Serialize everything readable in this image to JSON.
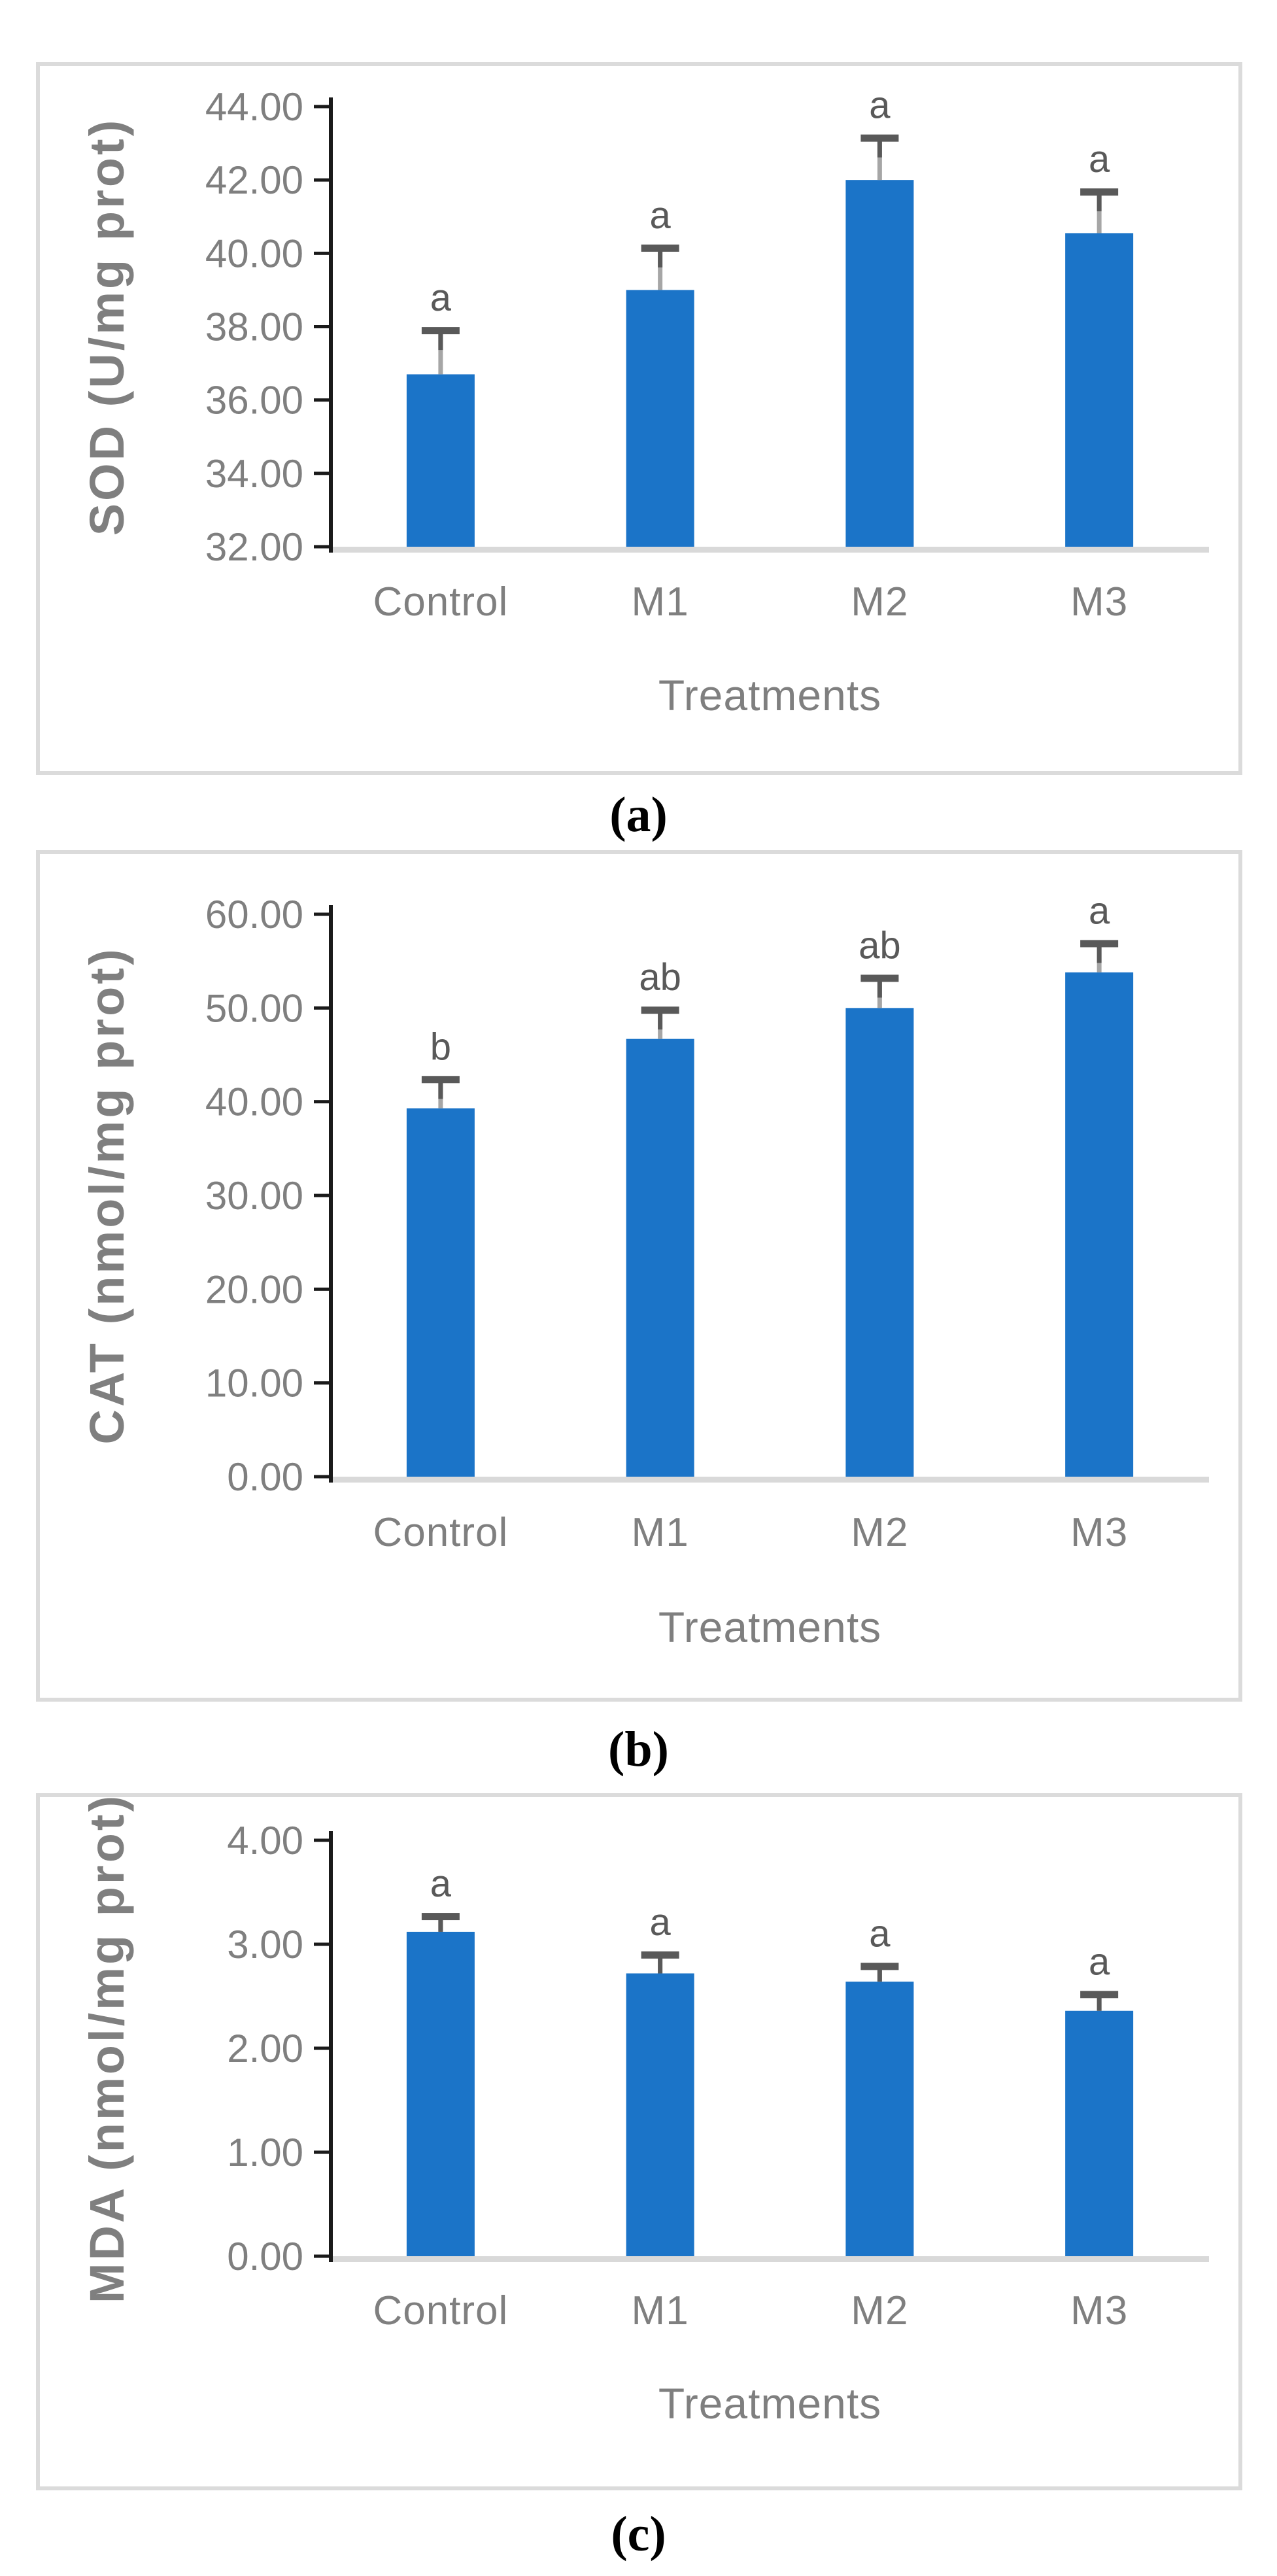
{
  "figure": {
    "caption_a": "(a)",
    "caption_b": "(b)",
    "caption_c": "(c)"
  },
  "colors": {
    "bar": "#1B74C8",
    "whisker": "#A6A6A6",
    "cap": "#595959",
    "sig_letter": "#595959",
    "tick_label": "#7F7F7F",
    "axis_title": "#7F7F7F",
    "axis_line": "#1A1A1A",
    "baseline": "#D9D9D9",
    "panel_border": "#DBDBDB",
    "caption": "#000000"
  },
  "chart_data": [
    {
      "id": "sod",
      "type": "bar",
      "panel_label": "(a)",
      "ylabel": "SOD (U/mg prot)",
      "xlabel": "Treatments",
      "categories": [
        "Control",
        "M1",
        "M2",
        "M3"
      ],
      "values": [
        36.7,
        39.0,
        42.0,
        40.55
      ],
      "error_up": [
        1.2,
        1.15,
        1.15,
        1.13
      ],
      "sig_letters": [
        "a",
        "a",
        "a",
        "a"
      ],
      "ylim": [
        32,
        44
      ],
      "ytick_step": 2,
      "ytick_labels": [
        "44.00",
        "42.00",
        "40.00",
        "38.00",
        "36.00",
        "34.00",
        "32.00"
      ],
      "grid": false,
      "legend": "none"
    },
    {
      "id": "cat",
      "type": "bar",
      "panel_label": "(b)",
      "ylabel": "CAT (nmol/mg prot)",
      "xlabel": "Treatments",
      "categories": [
        "Control",
        "M1",
        "M2",
        "M3"
      ],
      "values": [
        39.3,
        46.7,
        50.0,
        53.8
      ],
      "error_up": [
        3.1,
        3.1,
        3.2,
        3.1
      ],
      "sig_letters": [
        "b",
        "ab",
        "ab",
        "a"
      ],
      "ylim": [
        0,
        60
      ],
      "ytick_step": 10,
      "ytick_labels": [
        "60.00",
        "50.00",
        "40.00",
        "30.00",
        "20.00",
        "10.00",
        "0.00"
      ],
      "grid": false,
      "legend": "none"
    },
    {
      "id": "mda",
      "type": "bar",
      "panel_label": "(c)",
      "ylabel": "MDA (nmol/mg prot)",
      "xlabel": "Treatments",
      "categories": [
        "Control",
        "M1",
        "M2",
        "M3"
      ],
      "values": [
        3.12,
        2.72,
        2.64,
        2.36
      ],
      "error_up": [
        0.15,
        0.18,
        0.15,
        0.16
      ],
      "sig_letters": [
        "a",
        "a",
        "a",
        "a"
      ],
      "ylim": [
        0,
        4
      ],
      "ytick_step": 1,
      "ytick_labels": [
        "4.00",
        "3.00",
        "2.00",
        "1.00",
        "0.00"
      ],
      "grid": false,
      "legend": "none"
    }
  ]
}
